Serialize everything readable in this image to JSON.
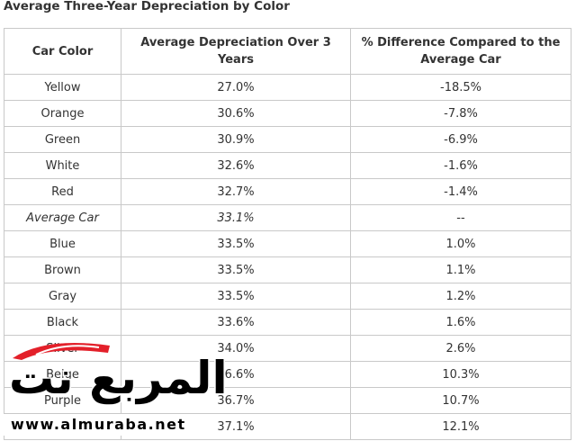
{
  "title": "Average Three-Year Depreciation by Color",
  "table": {
    "headers": [
      "Car Color",
      "Average Depreciation Over 3 Years",
      "% Difference Compared to the Average Car"
    ],
    "rows": [
      {
        "color": "Yellow",
        "depreciation": "27.0%",
        "difference": "-18.5%"
      },
      {
        "color": "Orange",
        "depreciation": "30.6%",
        "difference": "-7.8%"
      },
      {
        "color": "Green",
        "depreciation": "30.9%",
        "difference": "-6.9%"
      },
      {
        "color": "White",
        "depreciation": "32.6%",
        "difference": "-1.6%"
      },
      {
        "color": "Red",
        "depreciation": "32.7%",
        "difference": "-1.4%"
      },
      {
        "color": "Average Car",
        "depreciation": "33.1%",
        "difference": "--"
      },
      {
        "color": "Blue",
        "depreciation": "33.5%",
        "difference": "1.0%"
      },
      {
        "color": "Brown",
        "depreciation": "33.5%",
        "difference": "1.1%"
      },
      {
        "color": "Gray",
        "depreciation": "33.5%",
        "difference": "1.2%"
      },
      {
        "color": "Black",
        "depreciation": "33.6%",
        "difference": "1.6%"
      },
      {
        "color": "Silver",
        "depreciation": "34.0%",
        "difference": "2.6%"
      },
      {
        "color": "Beige",
        "depreciation": "36.6%",
        "difference": "10.3%"
      },
      {
        "color": "Purple",
        "depreciation": "36.7%",
        "difference": "10.7%"
      },
      {
        "color": "",
        "depreciation": "37.1%",
        "difference": "12.1%"
      }
    ]
  },
  "watermark": {
    "logo_text": "المربع نت",
    "url": "www.almuraba.net",
    "colors": {
      "swoosh": "#e3202a",
      "text": "#000000"
    }
  }
}
